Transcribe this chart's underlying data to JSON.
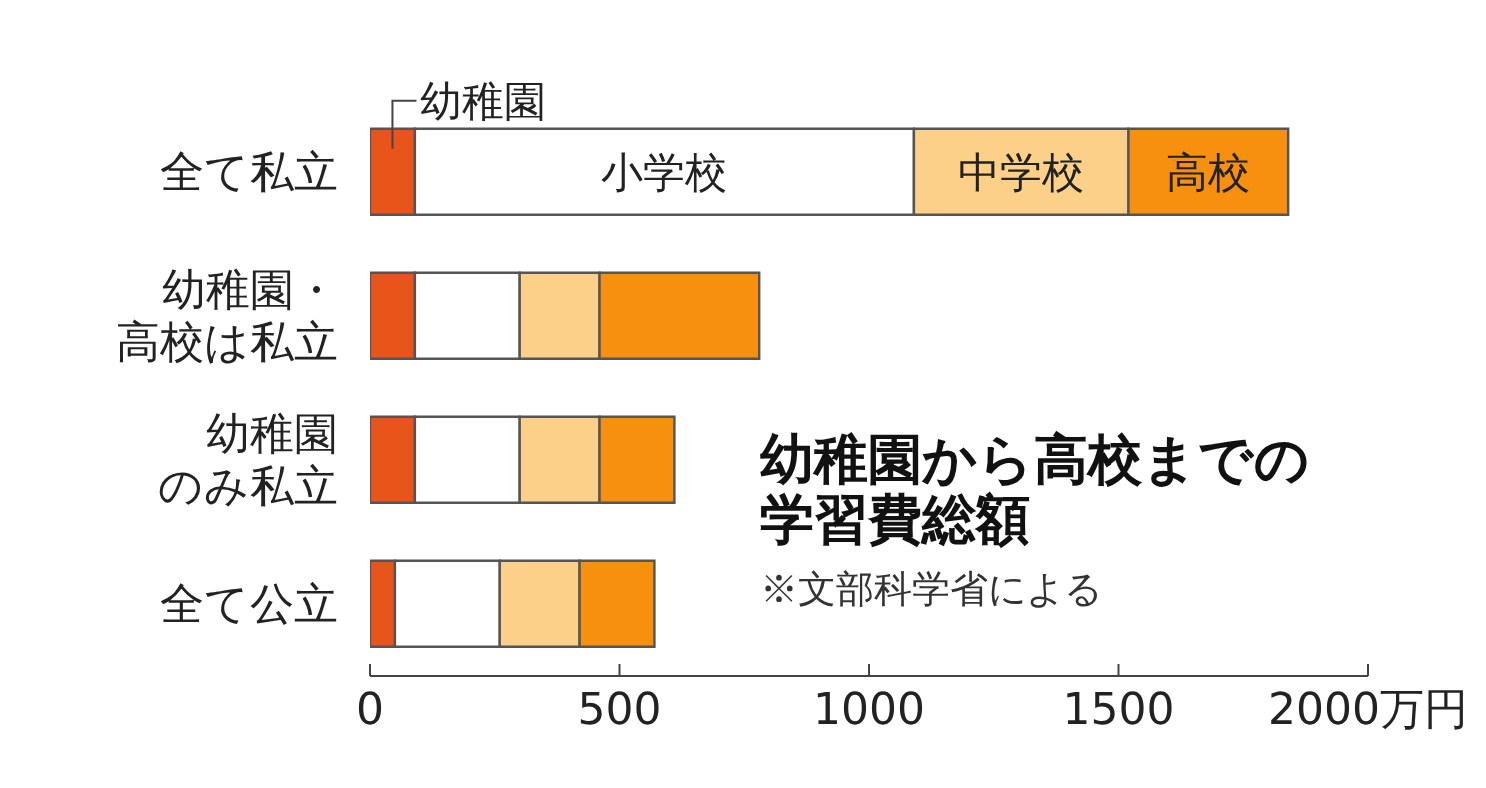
{
  "chart_data": {
    "type": "bar",
    "orientation": "horizontal",
    "stacked": true,
    "title": "幼稚園から高校までの学習費総額",
    "annotations": [
      "※文部科学省による"
    ],
    "categories": [
      "全て私立",
      "幼稚園・高校は私立",
      "幼稚園のみ私立",
      "全て公立"
    ],
    "series": [
      {
        "name": "幼稚園",
        "color": "#e8541a",
        "values": [
          90,
          90,
          90,
          50
        ]
      },
      {
        "name": "小学校",
        "color": "#ffffff",
        "values": [
          1000,
          210,
          210,
          210
        ]
      },
      {
        "name": "中学校",
        "color": "#fdd08a",
        "values": [
          430,
          160,
          160,
          160
        ]
      },
      {
        "name": "高校",
        "color": "#f7900f",
        "values": [
          320,
          320,
          150,
          150
        ]
      }
    ],
    "xlim": [
      0,
      2000
    ],
    "xticks": [
      0,
      500,
      1000,
      1500,
      {
        "value": 2000,
        "label": "2000万円"
      }
    ],
    "legend": false,
    "grid": false
  }
}
